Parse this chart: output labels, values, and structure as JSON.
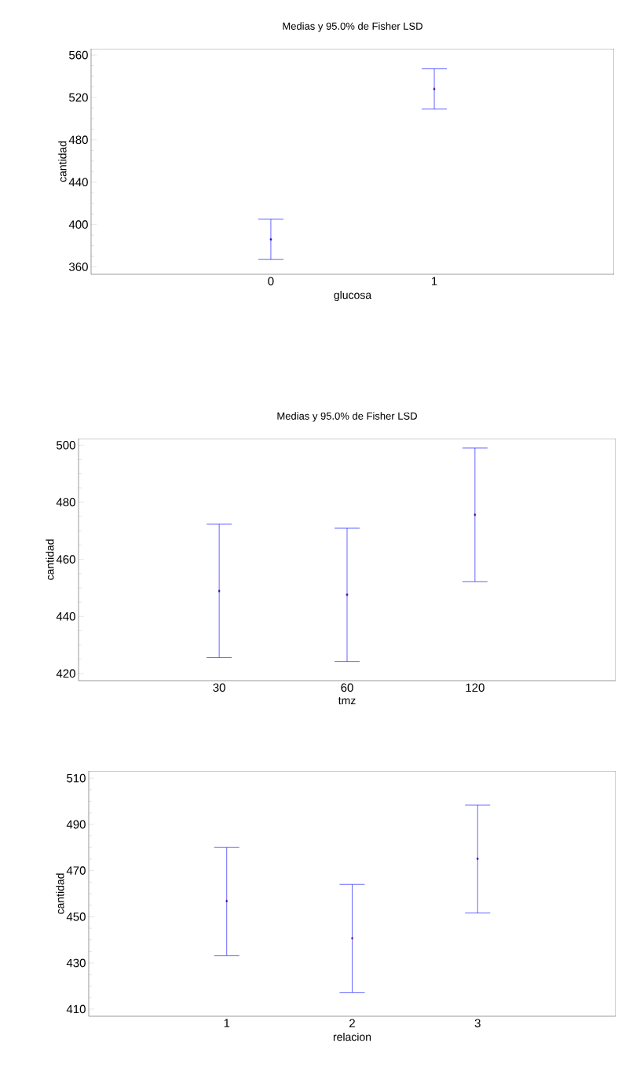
{
  "chart_data": [
    {
      "type": "scatter",
      "title": "Medias y 95.0% de Fisher LSD",
      "xlabel": "glucosa",
      "ylabel": "cantidad",
      "categories": [
        "0",
        "1"
      ],
      "values": [
        386,
        528
      ],
      "errors": [
        [
          367,
          405
        ],
        [
          509,
          547
        ]
      ],
      "color": "#0000ff",
      "marker": "diamond",
      "ylim": [
        353,
        566
      ],
      "yticks": [
        360,
        400,
        440,
        480,
        520,
        560
      ]
    },
    {
      "type": "scatter",
      "title": "Medias y 95.0% de Fisher LSD",
      "xlabel": "tmz",
      "ylabel": "cantidad",
      "categories": [
        "30",
        "60",
        "120"
      ],
      "values": [
        448.9,
        447.6,
        475.6
      ],
      "errors": [
        [
          425.6,
          472.3
        ],
        [
          424.2,
          470.9
        ],
        [
          452.2,
          499
        ]
      ],
      "color": "#0000ff",
      "marker": "diamond",
      "ylim": [
        417.5,
        502.3
      ],
      "yticks": [
        420,
        440,
        460,
        480,
        500
      ]
    },
    {
      "type": "scatter",
      "xlabel": "relacion",
      "ylabel": "cantidad",
      "categories": [
        "1",
        "2",
        "3"
      ],
      "values": [
        456.8,
        440.7,
        475.1
      ],
      "errors": [
        [
          433.2,
          480
        ],
        [
          417.2,
          464
        ],
        [
          451.6,
          498.4
        ]
      ],
      "color": "#0000ff",
      "marker": "diamond",
      "ylim": [
        406.9,
        513.1
      ],
      "yticks": [
        410,
        430,
        450,
        470,
        490,
        510
      ]
    }
  ]
}
